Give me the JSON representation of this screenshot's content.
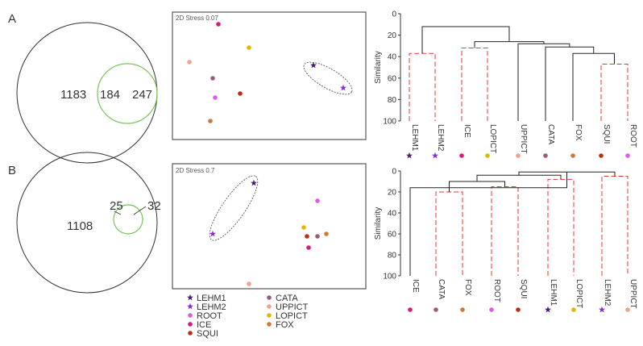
{
  "colors": {
    "LEHM1": "#4b1a7a",
    "LEHM2": "#8a2be2",
    "ROOT": "#e05ae8",
    "ICE": "#d81b7a",
    "SQUI": "#b83010",
    "CATA": "#9b5a7e",
    "UPPICT": "#f4a08e",
    "LOPICT": "#e0b800",
    "FOX": "#d07838",
    "venn_outer": "#333333",
    "venn_inner": "#7cc35a",
    "dendro_solid": "#222222",
    "dendro_dashed": "#e53935"
  },
  "panel_labels": {
    "a": "A",
    "b": "B"
  },
  "venn_a": {
    "left_only": "1183",
    "overlap": "184",
    "right_only": "247"
  },
  "venn_b": {
    "left_only": "1108",
    "overlap": "25",
    "right_only": "32"
  },
  "mds_a": {
    "stress_label": "2D Stress 0.07"
  },
  "mds_b": {
    "stress_label": "2D Stress 0.7"
  },
  "dendro_axis": {
    "ylabel": "Similarity",
    "ticks": [
      "0",
      "20",
      "40",
      "60",
      "80",
      "100"
    ]
  },
  "dendro_a": {
    "leaves": [
      "LEHM1",
      "LEHM2",
      "ICE",
      "LOPICT",
      "UPPICT",
      "CATA",
      "FOX",
      "SQUI",
      "ROOT"
    ]
  },
  "dendro_b": {
    "leaves": [
      "ICE",
      "CATA",
      "FOX",
      "ROOT",
      "SQUI",
      "LEHM1",
      "LOPICT",
      "LEHM2",
      "UPPICT"
    ]
  },
  "legend": {
    "items": [
      {
        "key": "LEHM1",
        "label": "LEHM1",
        "marker": "star"
      },
      {
        "key": "LEHM2",
        "label": "LEHM2",
        "marker": "star"
      },
      {
        "key": "ROOT",
        "label": "ROOT",
        "marker": "dot"
      },
      {
        "key": "ICE",
        "label": "ICE",
        "marker": "dot"
      },
      {
        "key": "SQUI",
        "label": "SQUI",
        "marker": "dot"
      },
      {
        "key": "CATA",
        "label": "CATA",
        "marker": "dot"
      },
      {
        "key": "UPPICT",
        "label": "UPPICT",
        "marker": "dot"
      },
      {
        "key": "LOPICT",
        "label": "LOPICT",
        "marker": "dot"
      },
      {
        "key": "FOX",
        "label": "FOX",
        "marker": "dot"
      }
    ]
  }
}
